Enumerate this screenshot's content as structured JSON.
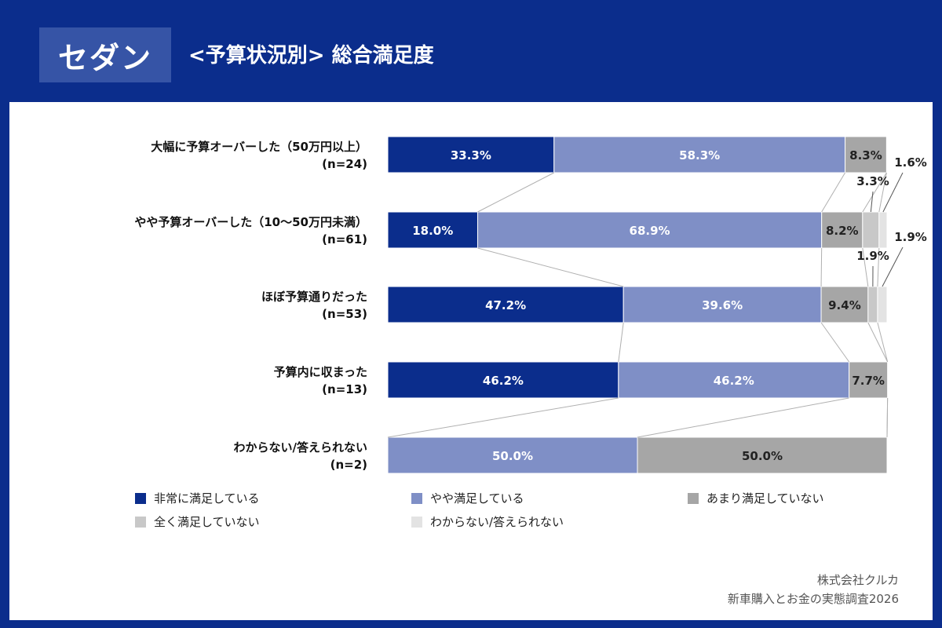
{
  "header": {
    "badge": "セダン",
    "title": "<予算状況別> 総合満足度"
  },
  "colors": {
    "header_bg": "#0b2d8c",
    "s1": "#0b2d8c",
    "s2": "#7f8fc6",
    "s3": "#a6a6a6",
    "s4": "#c8c8c8",
    "s5": "#e3e3e3"
  },
  "chart_data": {
    "type": "bar",
    "orientation": "horizontal",
    "stacked": true,
    "percent": true,
    "categories": [
      {
        "label": "大幅に予算オーバーした（50万円以上）",
        "n": "(n=24)"
      },
      {
        "label": "やや予算オーバーした（10〜50万円未満）",
        "n": "(n=61)"
      },
      {
        "label": "ほぼ予算通りだった",
        "n": "(n=53)"
      },
      {
        "label": "予算内に収まった",
        "n": "(n=13)"
      },
      {
        "label": "わからない/答えられない",
        "n": "(n=2)"
      }
    ],
    "series": [
      {
        "name": "非常に満足している",
        "values": [
          33.3,
          18.0,
          47.2,
          46.2,
          0
        ]
      },
      {
        "name": "やや満足している",
        "values": [
          58.3,
          68.9,
          39.6,
          46.2,
          50.0
        ]
      },
      {
        "name": "あまり満足していない",
        "values": [
          8.3,
          8.2,
          9.4,
          7.7,
          50.0
        ]
      },
      {
        "name": "全く満足していない",
        "values": [
          0,
          3.3,
          1.9,
          0,
          0
        ]
      },
      {
        "name": "わからない/答えられない",
        "values": [
          0,
          1.6,
          1.9,
          0,
          0
        ]
      }
    ],
    "data_labels": [
      [
        "33.3%",
        "58.3%",
        "8.3%",
        "",
        ""
      ],
      [
        "18.0%",
        "68.9%",
        "8.2%",
        "3.3%",
        "1.6%"
      ],
      [
        "47.2%",
        "39.6%",
        "9.4%",
        "1.9%",
        "1.9%"
      ],
      [
        "46.2%",
        "46.2%",
        "7.7%",
        "",
        ""
      ],
      [
        "",
        "50.0%",
        "50.0%",
        "",
        ""
      ]
    ],
    "connector_lines": true,
    "legend_position": "bottom"
  },
  "legend": [
    "非常に満足している",
    "やや満足している",
    "あまり満足していない",
    "全く満足していない",
    "わからない/答えられない"
  ],
  "credit": {
    "line1": "株式会社クルカ",
    "line2": "新車購入とお金の実態調査2026"
  }
}
